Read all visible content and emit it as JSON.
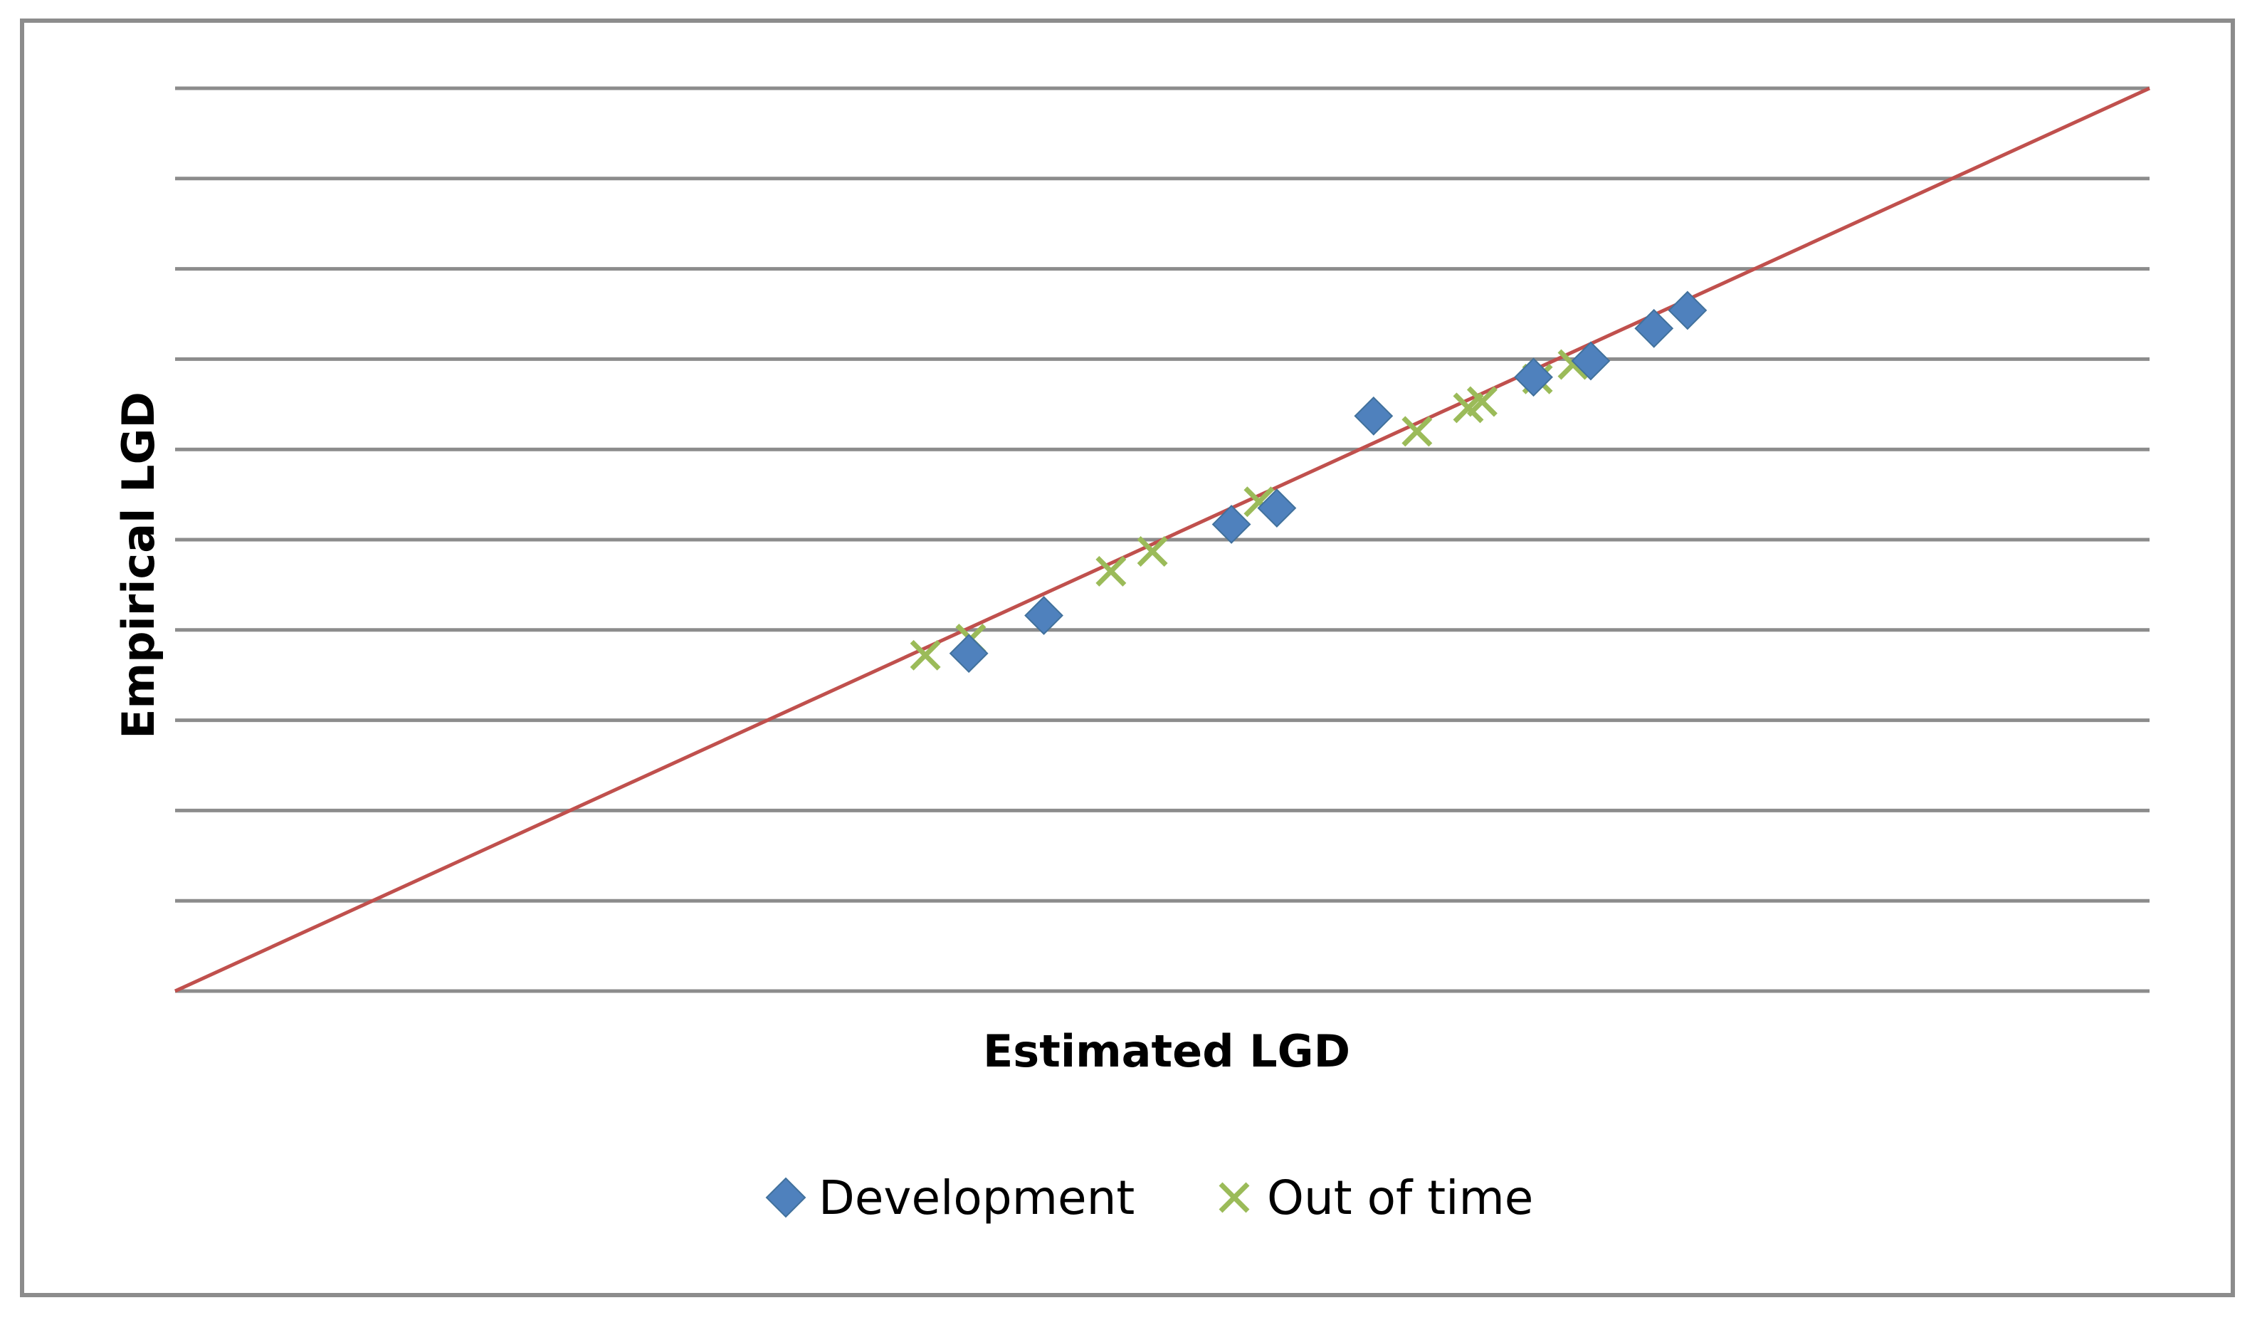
{
  "chart_data": {
    "type": "scatter",
    "title": "",
    "xlabel": "Estimated LGD",
    "ylabel": "Empirical LGD",
    "xlim": [
      0,
      1
    ],
    "ylim": [
      0,
      1
    ],
    "y_gridlines": [
      0,
      0.1,
      0.2,
      0.3,
      0.4,
      0.5,
      0.6,
      0.7,
      0.8,
      0.9,
      1.0
    ],
    "show_tick_labels": false,
    "legend_position": "bottom",
    "reference_line": {
      "name": "45-degree line",
      "x": [
        0,
        1
      ],
      "y": [
        0,
        1
      ],
      "color": "#c0504d"
    },
    "series": [
      {
        "name": "Development",
        "marker": "diamond",
        "color": "#4f81bd",
        "points": [
          {
            "x": 0.402,
            "y": 0.374
          },
          {
            "x": 0.44,
            "y": 0.416
          },
          {
            "x": 0.535,
            "y": 0.517
          },
          {
            "x": 0.558,
            "y": 0.535
          },
          {
            "x": 0.607,
            "y": 0.637
          },
          {
            "x": 0.688,
            "y": 0.68
          },
          {
            "x": 0.717,
            "y": 0.698
          },
          {
            "x": 0.749,
            "y": 0.734
          },
          {
            "x": 0.766,
            "y": 0.754
          }
        ]
      },
      {
        "name": "Out of time",
        "marker": "x",
        "color": "#9bbb59",
        "points": [
          {
            "x": 0.38,
            "y": 0.372
          },
          {
            "x": 0.403,
            "y": 0.39
          },
          {
            "x": 0.474,
            "y": 0.465
          },
          {
            "x": 0.495,
            "y": 0.487
          },
          {
            "x": 0.549,
            "y": 0.542
          },
          {
            "x": 0.629,
            "y": 0.62
          },
          {
            "x": 0.655,
            "y": 0.646
          },
          {
            "x": 0.662,
            "y": 0.653
          },
          {
            "x": 0.69,
            "y": 0.678
          },
          {
            "x": 0.708,
            "y": 0.694
          }
        ]
      }
    ],
    "legend": [
      {
        "label": "Development",
        "marker": "diamond",
        "color": "#4f81bd"
      },
      {
        "label": "Out of time",
        "marker": "x",
        "color": "#9bbb59"
      }
    ]
  }
}
